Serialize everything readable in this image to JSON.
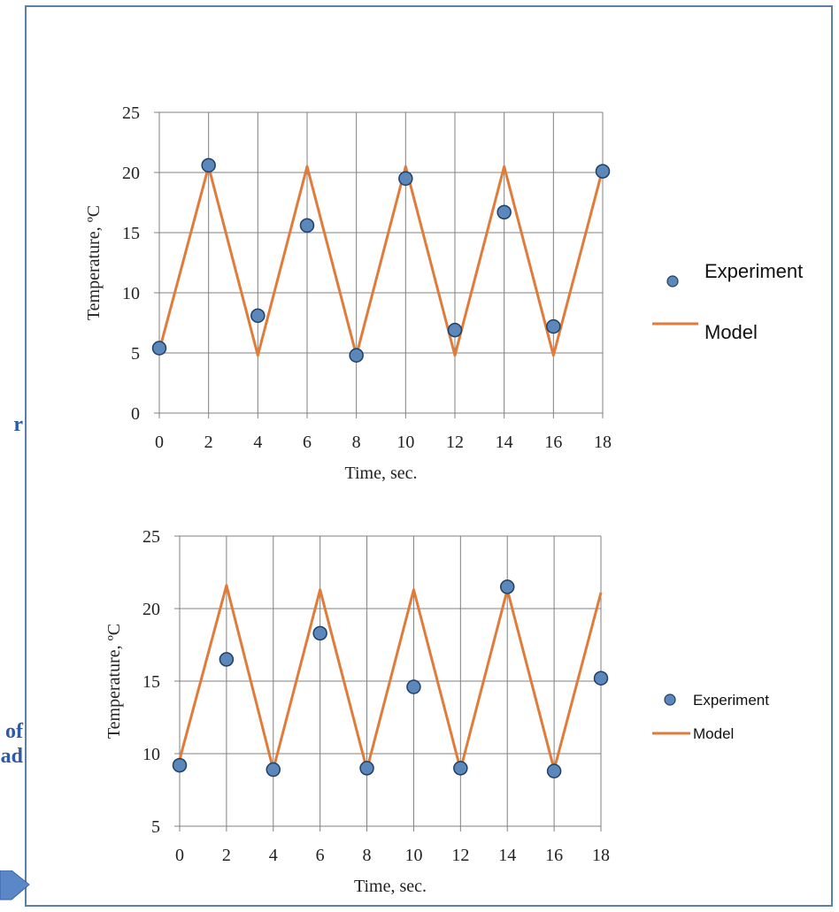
{
  "side_text": {
    "fragment_1": "r",
    "fragment_2_line1": "of",
    "fragment_2_line2": "ad"
  },
  "colors": {
    "frame": "#5b7fa6",
    "side_text": "#2e5aa7",
    "model_line": "#e07b39",
    "experiment_marker": "#5b87bb",
    "experiment_edge": "#1f3f66",
    "grid": "#808080"
  },
  "chart_data": [
    {
      "type": "line",
      "xlabel": "Time, sec.",
      "ylabel": "Temperature, ºC",
      "xlim": [
        0,
        18
      ],
      "ylim": [
        0,
        25
      ],
      "x_ticks": [
        0,
        2,
        4,
        6,
        8,
        10,
        12,
        14,
        16,
        18
      ],
      "y_ticks": [
        0,
        5,
        10,
        15,
        20,
        25
      ],
      "grid": true,
      "legend_position": "right",
      "series": [
        {
          "name": "Experiment",
          "kind": "scatter",
          "x": [
            0,
            2,
            4,
            6,
            8,
            10,
            12,
            14,
            16,
            18
          ],
          "y": [
            5.4,
            20.6,
            8.1,
            15.6,
            4.8,
            19.5,
            6.9,
            16.7,
            7.2,
            20.1
          ]
        },
        {
          "name": "Model",
          "kind": "line",
          "x": [
            0,
            2,
            4,
            6,
            8,
            10,
            12,
            14,
            16,
            18
          ],
          "y": [
            5.2,
            20.5,
            4.8,
            20.5,
            4.8,
            20.5,
            4.8,
            20.5,
            4.8,
            20.3
          ]
        }
      ]
    },
    {
      "type": "line",
      "xlabel": "Time, sec.",
      "ylabel": "Temperature, ºC",
      "xlim": [
        0,
        18
      ],
      "ylim": [
        5,
        25
      ],
      "x_ticks": [
        0,
        2,
        4,
        6,
        8,
        10,
        12,
        14,
        16,
        18
      ],
      "y_ticks": [
        5,
        10,
        15,
        20,
        25
      ],
      "grid": true,
      "legend_position": "right",
      "series": [
        {
          "name": "Experiment",
          "kind": "scatter",
          "x": [
            0,
            2,
            4,
            6,
            8,
            10,
            12,
            14,
            16,
            18
          ],
          "y": [
            9.2,
            16.5,
            8.9,
            18.3,
            9.0,
            14.6,
            9.0,
            21.5,
            8.8,
            15.2
          ]
        },
        {
          "name": "Model",
          "kind": "line",
          "x": [
            0,
            2,
            4,
            6,
            8,
            10,
            12,
            14,
            16,
            18
          ],
          "y": [
            9.6,
            21.6,
            8.9,
            21.3,
            8.9,
            21.3,
            8.9,
            21.3,
            8.9,
            21.1
          ]
        }
      ]
    }
  ]
}
